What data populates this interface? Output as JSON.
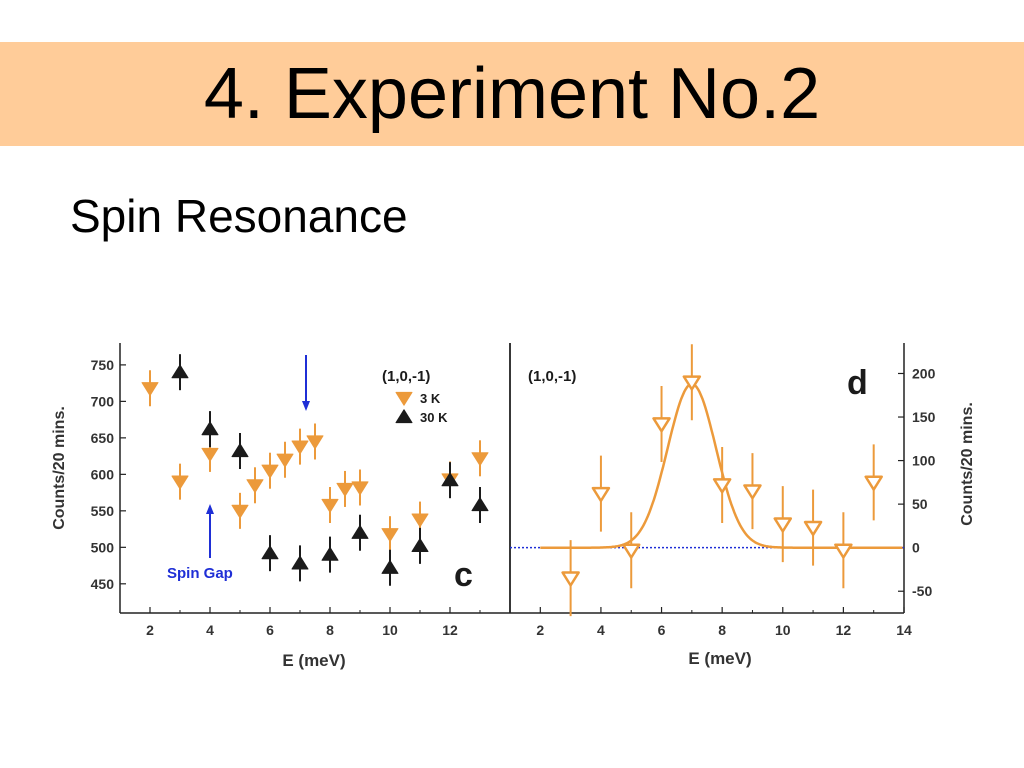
{
  "slide": {
    "title": "4. Experiment No.2",
    "subtitle": "Spin Resonance"
  },
  "colors": {
    "orange": "#ec9a3b",
    "black": "#1b1b1b",
    "blue": "#1f2fd6",
    "header": "#ffcc99"
  },
  "chart_data": [
    {
      "panel_label": "c",
      "type": "scatter",
      "xlabel": "E (meV)",
      "ylabel": "Counts/20 mins.",
      "xlim": [
        1,
        14
      ],
      "ylim": [
        410,
        780
      ],
      "xticks": [
        2,
        4,
        6,
        8,
        10,
        12
      ],
      "yticks": [
        450,
        500,
        550,
        600,
        650,
        700,
        750
      ],
      "legend_title": "(1,0,-1)",
      "legend_position": "top-right",
      "series": [
        {
          "name": "3 K",
          "marker": "triangle-down-filled",
          "color": "#ec9a3b",
          "points": [
            {
              "x": 2,
              "y": 718
            },
            {
              "x": 3,
              "y": 590
            },
            {
              "x": 4,
              "y": 628
            },
            {
              "x": 5,
              "y": 550
            },
            {
              "x": 5.5,
              "y": 585
            },
            {
              "x": 6,
              "y": 605
            },
            {
              "x": 6.5,
              "y": 620
            },
            {
              "x": 7,
              "y": 638
            },
            {
              "x": 7.5,
              "y": 645
            },
            {
              "x": 8,
              "y": 558
            },
            {
              "x": 8.5,
              "y": 580
            },
            {
              "x": 9,
              "y": 582
            },
            {
              "x": 10,
              "y": 518
            },
            {
              "x": 11,
              "y": 538
            },
            {
              "x": 12,
              "y": 593
            },
            {
              "x": 13,
              "y": 622
            }
          ]
        },
        {
          "name": "30 K",
          "marker": "triangle-up-filled",
          "color": "#1b1b1b",
          "points": [
            {
              "x": 3,
              "y": 740
            },
            {
              "x": 4,
              "y": 662
            },
            {
              "x": 5,
              "y": 632
            },
            {
              "x": 6,
              "y": 492
            },
            {
              "x": 7,
              "y": 478
            },
            {
              "x": 8,
              "y": 490
            },
            {
              "x": 9,
              "y": 520
            },
            {
              "x": 10,
              "y": 472
            },
            {
              "x": 11,
              "y": 502
            },
            {
              "x": 12,
              "y": 592
            },
            {
              "x": 13,
              "y": 558
            }
          ]
        }
      ],
      "annotations": [
        {
          "text": "Spin Gap",
          "x": 4,
          "y": 540,
          "arrow": "up",
          "color": "#1f2fd6"
        },
        {
          "text": "",
          "x": 7.2,
          "y": 700,
          "arrow": "down",
          "color": "#1f2fd6"
        }
      ]
    },
    {
      "panel_label": "d",
      "type": "scatter",
      "xlabel": "E (meV)",
      "ylabel": "Counts/20 mins.",
      "xlim": [
        1,
        14
      ],
      "ylim": [
        -75,
        235
      ],
      "xticks": [
        2,
        4,
        6,
        8,
        10,
        12,
        14
      ],
      "yticks": [
        -50,
        0,
        50,
        100,
        150,
        200
      ],
      "legend_title": "(1,0,-1)",
      "series": [
        {
          "marker": "triangle-down-open",
          "color": "#ec9a3b",
          "points": [
            {
              "x": 3,
              "y": -35
            },
            {
              "x": 4,
              "y": 62
            },
            {
              "x": 5,
              "y": -3
            },
            {
              "x": 6,
              "y": 142
            },
            {
              "x": 7,
              "y": 190
            },
            {
              "x": 8,
              "y": 72
            },
            {
              "x": 9,
              "y": 65
            },
            {
              "x": 10,
              "y": 27
            },
            {
              "x": 11,
              "y": 23
            },
            {
              "x": 12,
              "y": -3
            },
            {
              "x": 13,
              "y": 75
            }
          ]
        }
      ],
      "fit": {
        "type": "gaussian",
        "center": 7,
        "amplitude": 188,
        "sigma": 0.8,
        "color": "#ec9a3b"
      },
      "baseline": {
        "y": 0,
        "color": "#1f2fd6",
        "style": "dotted"
      }
    }
  ]
}
